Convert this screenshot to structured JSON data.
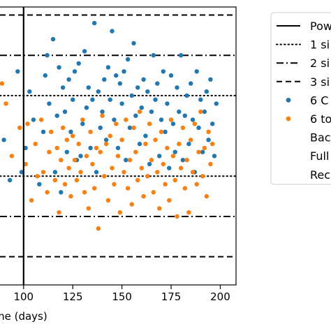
{
  "chart_data": {
    "type": "scatter",
    "xlabel": "me (days)",
    "x_ticks": [
      100,
      125,
      150,
      175,
      200
    ],
    "x_tick_labels": [
      "100",
      "125",
      "150",
      "175",
      "200"
    ],
    "xlim": [
      88,
      208
    ],
    "ylim": [
      -3.7,
      3.2
    ],
    "vertical_line_x": 100,
    "reference_lines": [
      {
        "style": "dotted",
        "y": 1.0
      },
      {
        "style": "dotted",
        "y": -1.0
      },
      {
        "style": "dashdot",
        "y": 2.0
      },
      {
        "style": "dashdot",
        "y": -2.0
      },
      {
        "style": "dashed",
        "y": 3.0
      },
      {
        "style": "dashed",
        "y": -3.0
      }
    ],
    "series": [
      {
        "name": "6 C",
        "color": "#1f77b4",
        "points": [
          [
            90,
            -0.1
          ],
          [
            93,
            -1.1
          ],
          [
            97,
            1.6
          ],
          [
            99,
            -0.9
          ],
          [
            101,
            -0.3
          ],
          [
            103,
            1.1
          ],
          [
            105,
            0.4
          ],
          [
            108,
            -1.2
          ],
          [
            110,
            0.1
          ],
          [
            111,
            1.5
          ],
          [
            112,
            2.0
          ],
          [
            113,
            0.8
          ],
          [
            115,
            2.4
          ],
          [
            116,
            -0.9
          ],
          [
            117,
            0.5
          ],
          [
            118,
            1.7
          ],
          [
            119,
            -1.4
          ],
          [
            120,
            1.2
          ],
          [
            121,
            0.6
          ],
          [
            122,
            -0.4
          ],
          [
            123,
            1.4
          ],
          [
            124,
            0.1
          ],
          [
            125,
            0.9
          ],
          [
            126,
            1.6
          ],
          [
            127,
            -0.6
          ],
          [
            128,
            1.8
          ],
          [
            129,
            -0.5
          ],
          [
            130,
            0.3
          ],
          [
            131,
            2.1
          ],
          [
            132,
            0.7
          ],
          [
            133,
            1.2
          ],
          [
            134,
            -0.3
          ],
          [
            135,
            0.9
          ],
          [
            136,
            2.8
          ],
          [
            137,
            -0.9
          ],
          [
            138,
            1.1
          ],
          [
            139,
            0.2
          ],
          [
            140,
            0.6
          ],
          [
            141,
            1.4
          ],
          [
            142,
            -0.1
          ],
          [
            143,
            1.7
          ],
          [
            144,
            0.9
          ],
          [
            145,
            2.6
          ],
          [
            146,
            0.4
          ],
          [
            147,
            1.5
          ],
          [
            148,
            -0.3
          ],
          [
            149,
            1.3
          ],
          [
            150,
            0.8
          ],
          [
            151,
            1.6
          ],
          [
            152,
            -0.6
          ],
          [
            153,
            1.9
          ],
          [
            154,
            0.2
          ],
          [
            155,
            1.0
          ],
          [
            156,
            2.3
          ],
          [
            157,
            0.5
          ],
          [
            158,
            1.2
          ],
          [
            159,
            -0.2
          ],
          [
            160,
            0.7
          ],
          [
            161,
            1.4
          ],
          [
            162,
            0.0
          ],
          [
            163,
            1.1
          ],
          [
            164,
            -0.7
          ],
          [
            165,
            0.6
          ],
          [
            166,
            2.0
          ],
          [
            167,
            0.9
          ],
          [
            168,
            1.3
          ],
          [
            169,
            -0.5
          ],
          [
            170,
            0.4
          ],
          [
            171,
            1.6
          ],
          [
            172,
            0.1
          ],
          [
            173,
            0.8
          ],
          [
            174,
            -0.8
          ],
          [
            175,
            1.5
          ],
          [
            176,
            0.3
          ],
          [
            177,
            -0.4
          ],
          [
            178,
            1.2
          ],
          [
            179,
            0.6
          ],
          [
            180,
            2.0
          ],
          [
            181,
            -0.6
          ],
          [
            182,
            0.5
          ],
          [
            183,
            1.0
          ],
          [
            184,
            -0.2
          ],
          [
            185,
            1.3
          ],
          [
            186,
            0.4
          ],
          [
            187,
            -0.9
          ],
          [
            188,
            1.6
          ],
          [
            189,
            0.2
          ],
          [
            190,
            0.9
          ],
          [
            191,
            -0.4
          ],
          [
            192,
            0.6
          ],
          [
            193,
            1.1
          ],
          [
            194,
            -0.1
          ],
          [
            195,
            1.4
          ],
          [
            196,
            0.3
          ],
          [
            197,
            -0.5
          ],
          [
            198,
            0.8
          ]
        ]
      },
      {
        "name": "6 to",
        "color": "#ff7f0e",
        "points": [
          [
            89,
            1.3
          ],
          [
            91,
            0.8
          ],
          [
            94,
            -0.5
          ],
          [
            98,
            0.2
          ],
          [
            101,
            -0.7
          ],
          [
            102,
            0.3
          ],
          [
            104,
            -1.6
          ],
          [
            106,
            -0.2
          ],
          [
            107,
            -1.0
          ],
          [
            109,
            0.4
          ],
          [
            110,
            -0.9
          ],
          [
            112,
            -1.4
          ],
          [
            113,
            -0.4
          ],
          [
            114,
            0.1
          ],
          [
            116,
            -1.1
          ],
          [
            117,
            -0.3
          ],
          [
            118,
            -1.9
          ],
          [
            119,
            -0.6
          ],
          [
            120,
            0.2
          ],
          [
            121,
            -1.2
          ],
          [
            122,
            -0.1
          ],
          [
            123,
            -0.8
          ],
          [
            124,
            -1.5
          ],
          [
            125,
            0.0
          ],
          [
            126,
            -0.6
          ],
          [
            127,
            -1.1
          ],
          [
            128,
            -0.2
          ],
          [
            129,
            -0.9
          ],
          [
            130,
            0.4
          ],
          [
            131,
            -1.4
          ],
          [
            132,
            -0.5
          ],
          [
            133,
            -1.8
          ],
          [
            134,
            0.1
          ],
          [
            135,
            -0.7
          ],
          [
            136,
            -1.3
          ],
          [
            137,
            -0.3
          ],
          [
            138,
            -2.3
          ],
          [
            139,
            -0.4
          ],
          [
            140,
            0.5
          ],
          [
            141,
            -1.0
          ],
          [
            142,
            -0.2
          ],
          [
            143,
            -1.6
          ],
          [
            144,
            0.0
          ],
          [
            145,
            -0.8
          ],
          [
            146,
            -1.2
          ],
          [
            147,
            0.3
          ],
          [
            148,
            -0.5
          ],
          [
            149,
            -1.9
          ],
          [
            150,
            -0.1
          ],
          [
            151,
            -0.9
          ],
          [
            152,
            0.4
          ],
          [
            153,
            -1.3
          ],
          [
            154,
            -0.6
          ],
          [
            155,
            -1.7
          ],
          [
            156,
            0.2
          ],
          [
            157,
            -0.4
          ],
          [
            158,
            -1.1
          ],
          [
            159,
            0.6
          ],
          [
            160,
            -0.8
          ],
          [
            161,
            -1.5
          ],
          [
            162,
            -0.2
          ],
          [
            163,
            -1.0
          ],
          [
            164,
            0.3
          ],
          [
            165,
            -0.6
          ],
          [
            166,
            -1.4
          ],
          [
            167,
            -0.1
          ],
          [
            168,
            -0.9
          ],
          [
            169,
            -1.8
          ],
          [
            170,
            0.1
          ],
          [
            171,
            -0.7
          ],
          [
            172,
            -1.2
          ],
          [
            173,
            -0.3
          ],
          [
            174,
            -1.6
          ],
          [
            175,
            0.4
          ],
          [
            176,
            -0.5
          ],
          [
            177,
            -1.1
          ],
          [
            178,
            -2.0
          ],
          [
            179,
            -0.2
          ],
          [
            180,
            -0.8
          ],
          [
            181,
            0.2
          ],
          [
            182,
            -1.3
          ],
          [
            183,
            -0.6
          ],
          [
            184,
            -1.9
          ],
          [
            185,
            -0.1
          ],
          [
            186,
            -0.9
          ],
          [
            187,
            0.3
          ],
          [
            188,
            -1.2
          ],
          [
            189,
            -0.4
          ],
          [
            190,
            0.6
          ],
          [
            191,
            -1.0
          ],
          [
            192,
            -0.3
          ],
          [
            193,
            -1.5
          ],
          [
            194,
            0.1
          ],
          [
            195,
            -0.7
          ],
          [
            196,
            -0.2
          ]
        ]
      }
    ],
    "legend": {
      "placement": "right, partially cropped",
      "entries": [
        {
          "label": "Pow",
          "marker": "solid-line"
        },
        {
          "label": "1 si",
          "marker": "dotted-line"
        },
        {
          "label": "2 si",
          "marker": "dashdot-line"
        },
        {
          "label": "3 si",
          "marker": "dashed-line"
        },
        {
          "label": "6 C",
          "marker": "dot",
          "color": "#1f77b4"
        },
        {
          "label": "6 to",
          "marker": "dot",
          "color": "#ff7f0e"
        },
        {
          "label": "Bac",
          "marker": "none"
        },
        {
          "label": "Full",
          "marker": "none"
        },
        {
          "label": "Rec",
          "marker": "none"
        }
      ]
    }
  }
}
